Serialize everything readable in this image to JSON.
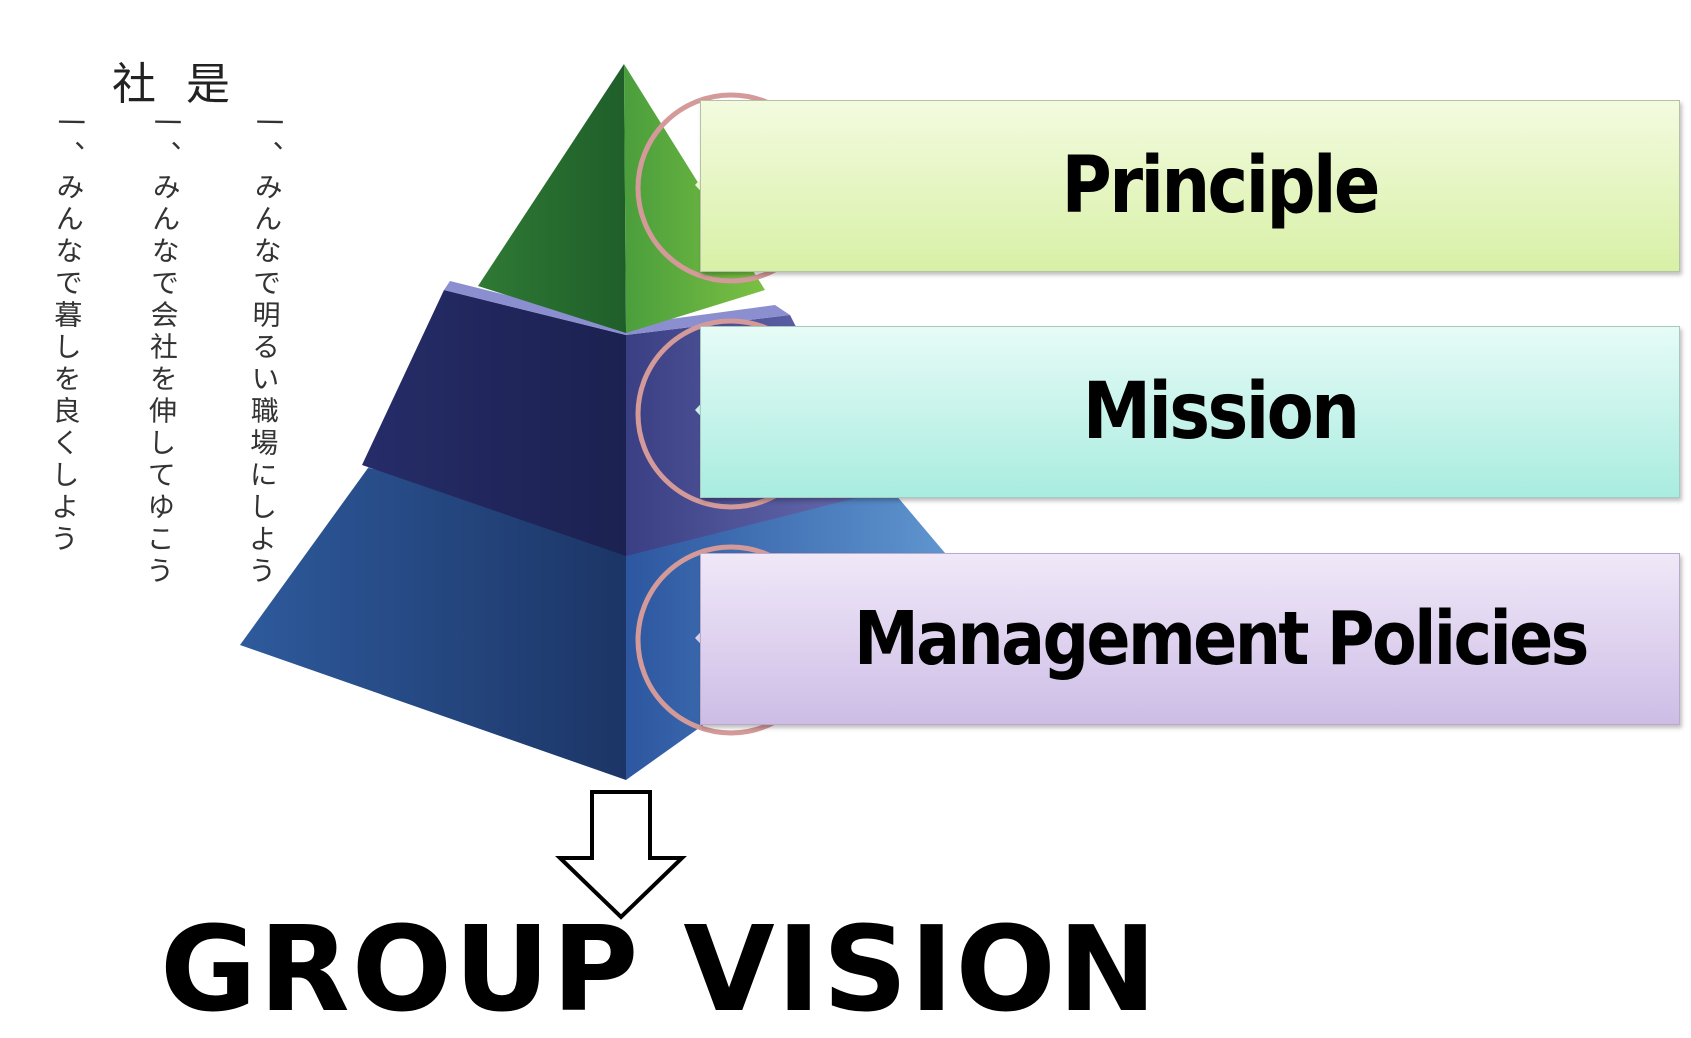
{
  "calligraphy": {
    "title": "社是",
    "lines": [
      "一、みんなで暮しを良くしよう",
      "一、みんなで会社を伸してゆこう",
      "一、みんなで明るい職場にしよう"
    ]
  },
  "pyramid": {
    "levels": [
      {
        "label": "Principle",
        "color": "#3e8f3a"
      },
      {
        "label": "Mission",
        "color": "#2a3270"
      },
      {
        "label": "Management Policies",
        "color": "#2d5aa0"
      }
    ]
  },
  "footer": {
    "title": "GROUP VISION"
  }
}
